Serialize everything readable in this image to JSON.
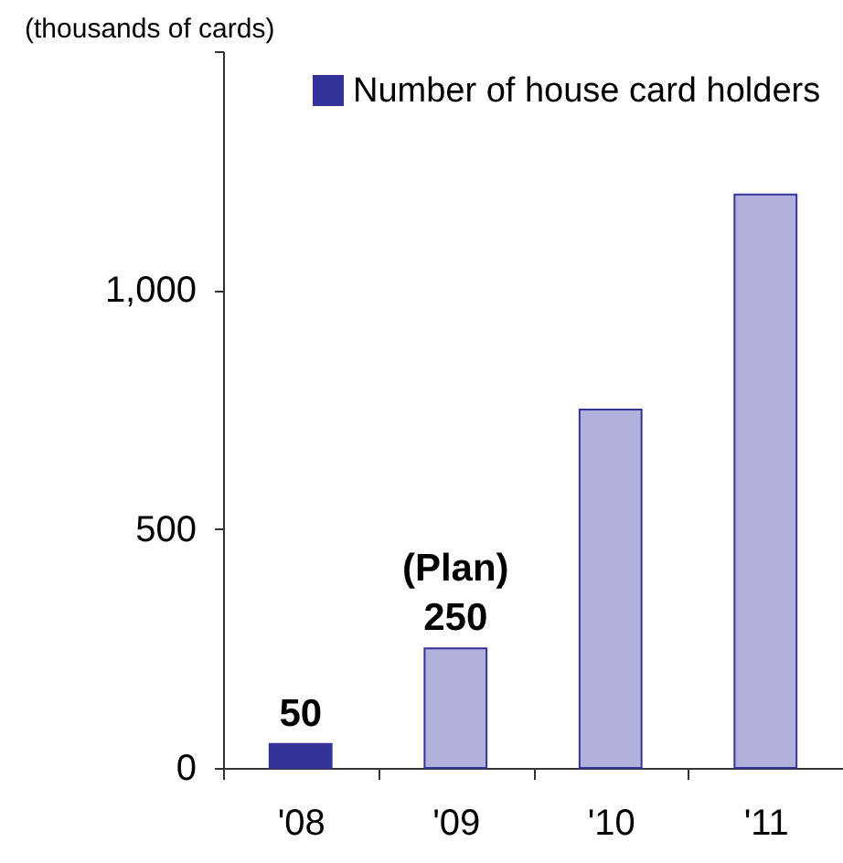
{
  "chart_data": {
    "type": "bar",
    "ylabel": "(thousands of cards)",
    "categories": [
      "'08",
      "'09",
      "'10",
      "'11"
    ],
    "series": [
      {
        "name": "Number of house card holders",
        "color": "#333399",
        "colors": [
          "#333399",
          "#b0b0da",
          "#b0b0da",
          "#b0b0da"
        ],
        "values": [
          50,
          250,
          750,
          1200
        ],
        "value_labels": [
          "50",
          "250",
          null,
          null
        ]
      }
    ],
    "ylim": [
      0,
      1500
    ],
    "yticks": [
      0,
      500,
      {
        "value": 1000,
        "label": "1,000"
      },
      {
        "value": 1500,
        "label": null
      }
    ],
    "annotations": [
      {
        "text": "(Plan)",
        "x": "'09",
        "y": 250
      }
    ],
    "legend": "top right",
    "grid": false
  }
}
